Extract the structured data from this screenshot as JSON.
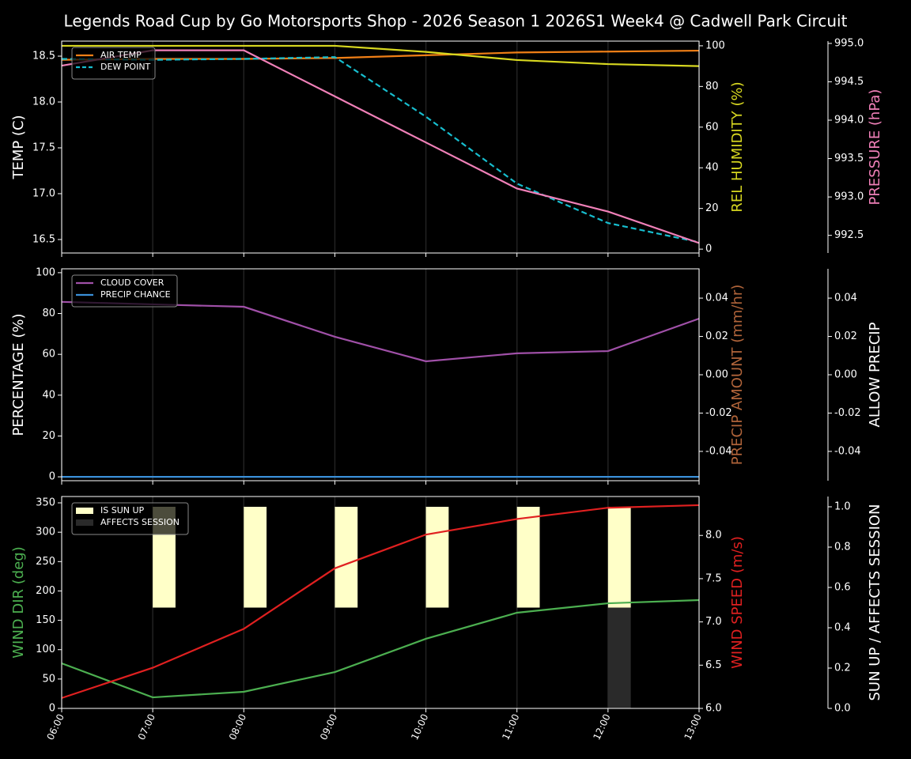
{
  "chart_data": [
    {
      "type": "line",
      "title": "Legends Road Cup by Go Motorsports Shop - 2026 Season 1 2026S1 Week4 @ Cadwell Park Circuit",
      "x": [
        "06:00",
        "07:00",
        "08:00",
        "09:00",
        "10:00",
        "11:00",
        "12:00",
        "13:00"
      ],
      "ylabel": "TEMP (C)",
      "ylabel_color": "#ffffff",
      "ylim": [
        16.353,
        18.664
      ],
      "yticks": [
        16.5,
        {
          "value": 17.0,
          "label": "17.0"
        },
        17.5,
        {
          "value": 18.0,
          "label": "18.0"
        },
        18.5
      ],
      "y2label": "REL HUMIDITY (%)",
      "y2label_color": "#d8d820",
      "y2lim": [
        -1.9,
        102.3
      ],
      "y2ticks": [
        0,
        20,
        40,
        60,
        80,
        100
      ],
      "y3label": "PRESSURE (hPa)",
      "y3label_color": "#f080b8",
      "y3lim": [
        992.27,
        995.03
      ],
      "y3ticks": [
        992.5,
        {
          "value": 993.0,
          "label": "993.0"
        },
        993.5,
        {
          "value": 994.0,
          "label": "994.0"
        },
        994.5,
        {
          "value": 995.0,
          "label": "995.0"
        }
      ],
      "grid": true,
      "series": [
        {
          "name": "AIR TEMP",
          "color": "#f07f16",
          "axis": "y",
          "values": [
            18.46,
            18.47,
            18.47,
            18.48,
            18.51,
            18.54,
            18.55,
            18.56
          ]
        },
        {
          "name": "DEW POINT",
          "color": "#17becf",
          "axis": "y",
          "linestyle": "dashed",
          "values": [
            18.47,
            18.46,
            18.47,
            18.49,
            17.84,
            17.11,
            16.68,
            16.47
          ]
        },
        {
          "color": "#d8d820",
          "axis": "y2",
          "values": [
            100,
            100,
            100,
            100,
            97,
            93,
            91,
            90
          ]
        },
        {
          "color": "#f080b8",
          "axis": "y3",
          "values": [
            994.71,
            994.91,
            994.91,
            994.31,
            993.71,
            993.11,
            992.81,
            992.4
          ]
        }
      ]
    },
    {
      "type": "line",
      "x": [
        "06:00",
        "07:00",
        "08:00",
        "09:00",
        "10:00",
        "11:00",
        "12:00",
        "13:00"
      ],
      "ylabel": "PERCENTAGE (%)",
      "ylabel_color": "#ffffff",
      "ylim": [
        -1.9,
        101.9
      ],
      "yticks": [
        0,
        20,
        40,
        60,
        80,
        100
      ],
      "y2label": "PRECIP AMOUNT (mm/hr)",
      "y2label_color": "#b0643a",
      "y2lim": [
        -0.0553,
        0.0553
      ],
      "y2ticks": [
        -0.04,
        -0.02,
        {
          "value": 0,
          "label": "0.00"
        },
        0.02,
        0.04
      ],
      "y3label": "ALLOW PRECIP",
      "y3label_color": "#ffffff",
      "y3lim": [
        -0.0553,
        0.0553
      ],
      "y3ticks": [
        -0.04,
        -0.02,
        {
          "value": 0,
          "label": "0.00"
        },
        0.02,
        0.04
      ],
      "grid": true,
      "series": [
        {
          "name": "CLOUD COVER",
          "color": "#a050a8",
          "axis": "y",
          "values": [
            85.7,
            84.5,
            83.3,
            68.6,
            56.6,
            60.5,
            61.6,
            77.5
          ]
        },
        {
          "name": "PRECIP CHANCE",
          "color": "#3a8fd8",
          "axis": "y",
          "values": [
            0,
            0,
            0,
            0,
            0,
            0,
            0,
            0
          ]
        }
      ]
    },
    {
      "type": "line",
      "x": [
        "06:00",
        "07:00",
        "08:00",
        "09:00",
        "10:00",
        "11:00",
        "12:00",
        "13:00"
      ],
      "ylabel": "WIND DIR (deg)",
      "ylabel_color": "#4caf50",
      "ylim": [
        0,
        360.8
      ],
      "yticks": [
        0,
        50,
        100,
        150,
        200,
        250,
        300,
        350
      ],
      "y2label": "WIND SPEED (m/s)",
      "y2label_color": "#e02020",
      "y2lim": [
        6.0,
        8.45
      ],
      "y2ticks": [
        {
          "value": 6.0,
          "label": "6.0"
        },
        6.5,
        {
          "value": 7.0,
          "label": "7.0"
        },
        7.5,
        {
          "value": 8.0,
          "label": "8.0"
        }
      ],
      "y3label": "SUN UP / AFFECTS SESSION",
      "y3label_color": "#ffffff",
      "y3lim": [
        0,
        1.051
      ],
      "y3ticks": [
        {
          "value": 0,
          "label": "0.0"
        },
        0.2,
        0.4,
        0.6,
        0.8,
        {
          "value": 1,
          "label": "1.0"
        }
      ],
      "grid": true,
      "series": [
        {
          "name": "IS SUN UP",
          "type": "bar",
          "color": "#ffffc8",
          "axis": "y3",
          "values": [
            0,
            1,
            1,
            1,
            1,
            1,
            1,
            0
          ]
        },
        {
          "name": "AFFECTS SESSION",
          "type": "bar",
          "color": "#2a2a2a",
          "axis": "y3",
          "values": [
            0,
            0,
            0,
            0,
            0,
            0,
            1,
            0
          ]
        },
        {
          "color": "#4caf50",
          "axis": "y",
          "values": [
            76.7,
            18.8,
            28.3,
            61.9,
            118.5,
            162.9,
            179,
            184.4
          ]
        },
        {
          "color": "#e02020",
          "axis": "y2",
          "values": [
            6.12,
            6.47,
            6.92,
            7.62,
            8.01,
            8.19,
            8.32,
            8.35
          ]
        }
      ]
    }
  ]
}
